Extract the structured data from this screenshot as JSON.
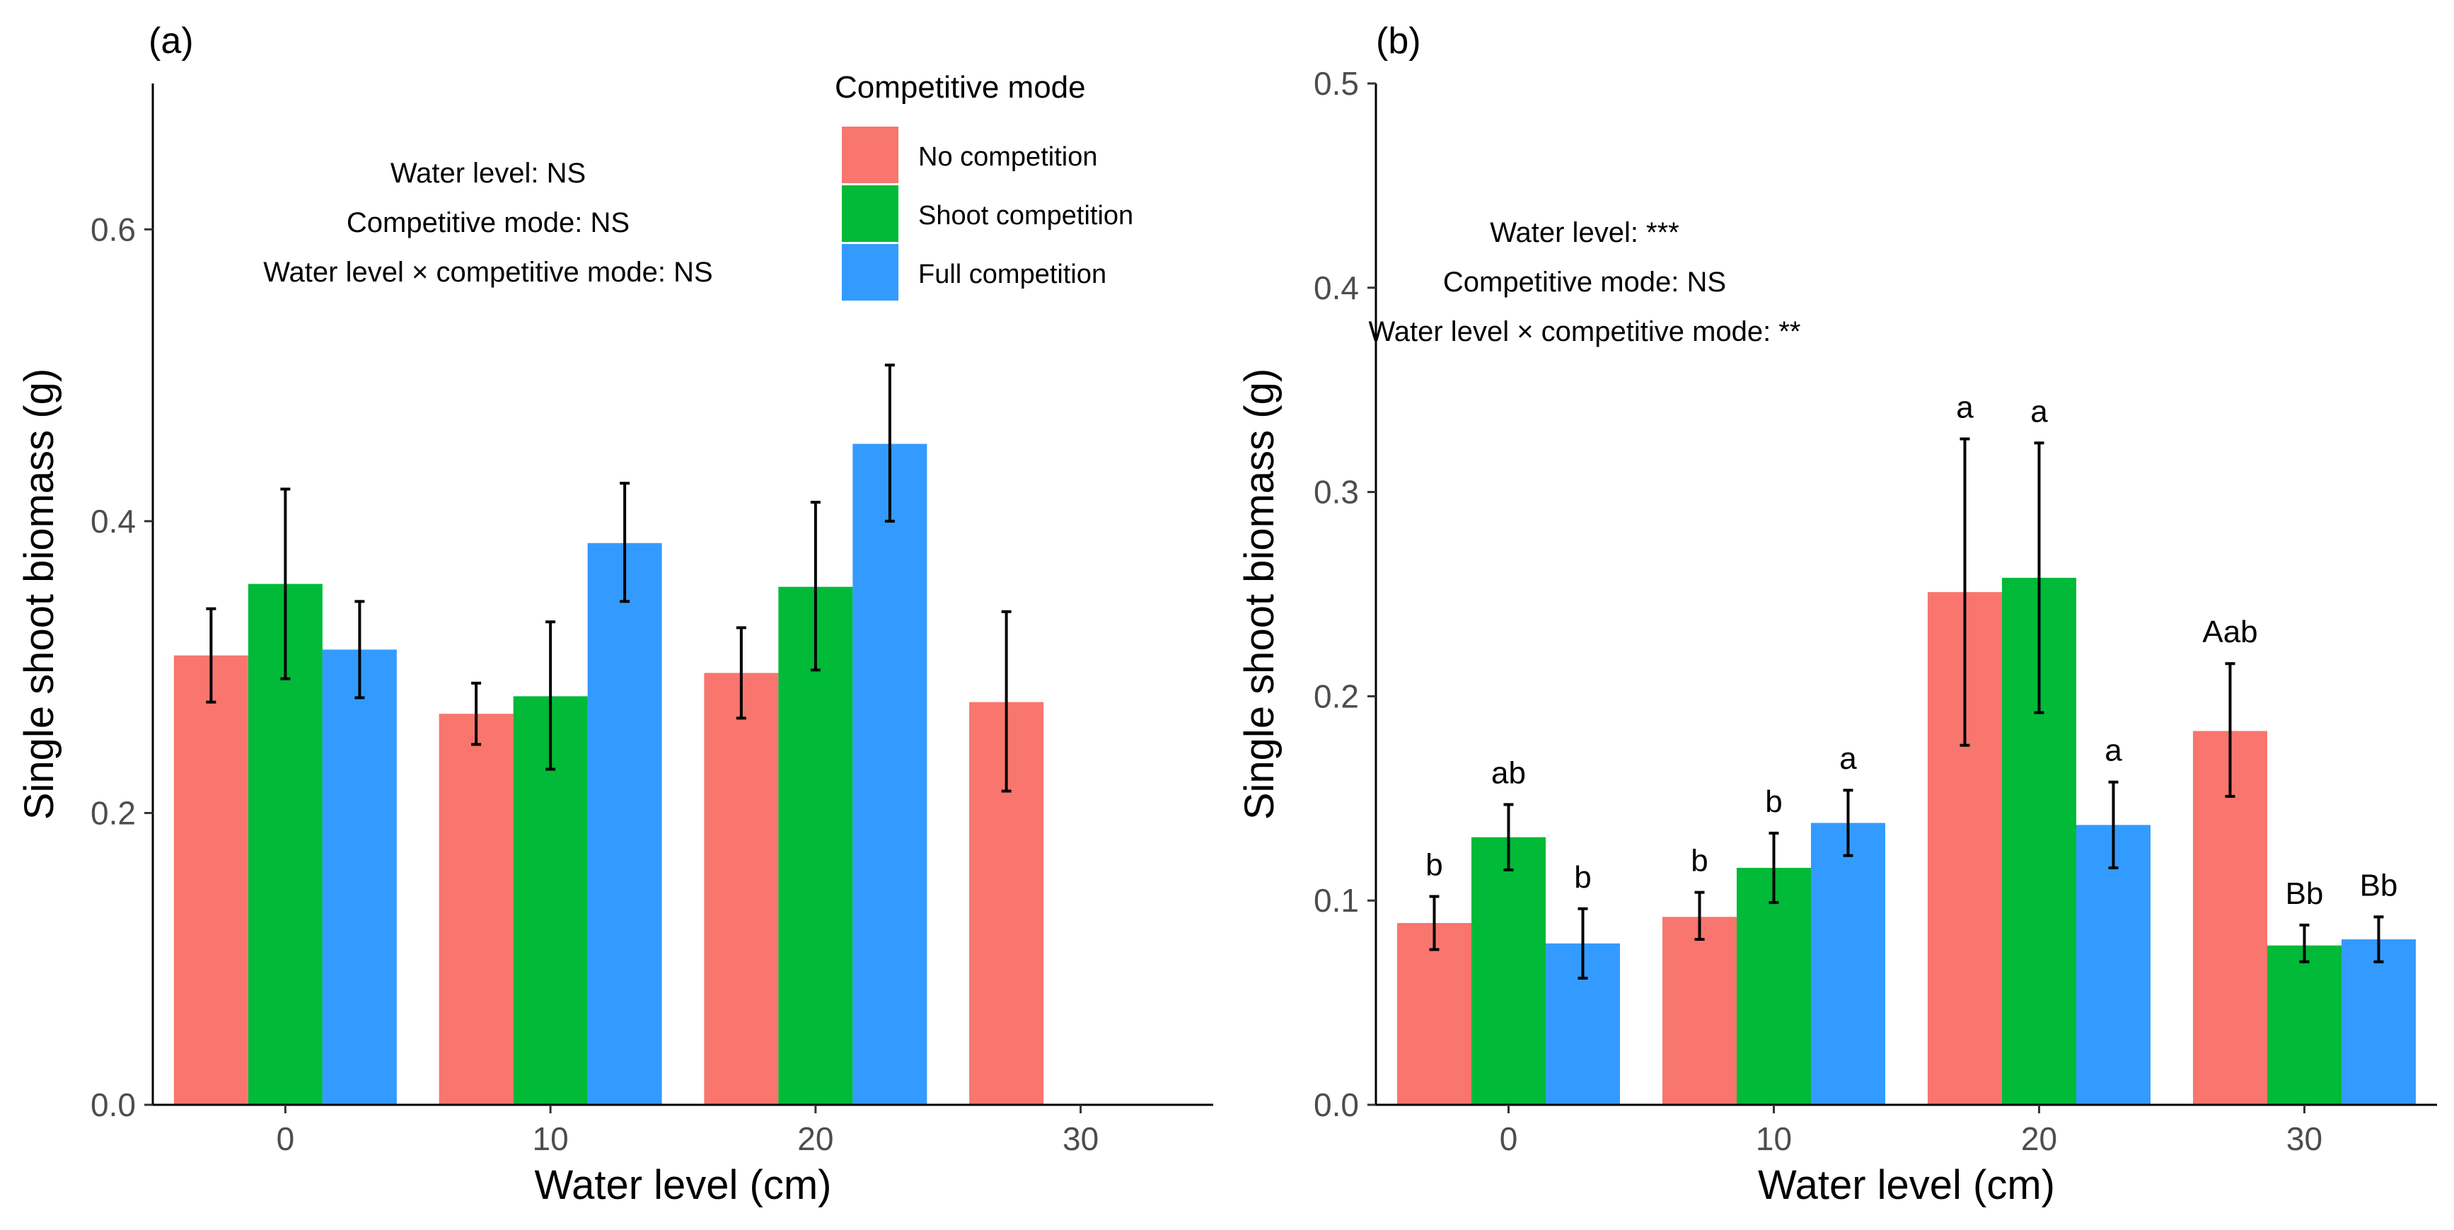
{
  "legend": {
    "title": "Competitive mode",
    "entries": [
      "No competition",
      "Shoot competition",
      "Full competition"
    ]
  },
  "colors": {
    "No competition": "#F8766D",
    "Shoot competition": "#00BA38",
    "Full competition": "#339BFF",
    "axis": "#000000",
    "tick_label": "#4D4D4D"
  },
  "chart_data": [
    {
      "type": "bar",
      "panel_label": "(a)",
      "xlabel": "Water level (cm)",
      "ylabel": "Single shoot biomass (g)",
      "categories": [
        "0",
        "10",
        "20",
        "30"
      ],
      "ylim": [
        0,
        0.7
      ],
      "yticks": [
        "0.0",
        "0.2",
        "0.4",
        "0.6"
      ],
      "grid": false,
      "series": [
        {
          "name": "No competition",
          "values": [
            0.308,
            0.268,
            0.296,
            0.276
          ],
          "err_low": [
            0.276,
            0.247,
            0.265,
            0.215
          ],
          "err_high": [
            0.34,
            0.289,
            0.327,
            0.338
          ],
          "labels": [
            "",
            "",
            "",
            ""
          ]
        },
        {
          "name": "Shoot competition",
          "values": [
            0.357,
            0.28,
            0.355,
            null
          ],
          "err_low": [
            0.292,
            0.23,
            0.298,
            null
          ],
          "err_high": [
            0.422,
            0.331,
            0.413,
            null
          ],
          "labels": [
            "",
            "",
            "",
            ""
          ]
        },
        {
          "name": "Full competition",
          "values": [
            0.312,
            0.385,
            0.453,
            null
          ],
          "err_low": [
            0.279,
            0.345,
            0.4,
            null
          ],
          "err_high": [
            0.345,
            0.426,
            0.507,
            null
          ],
          "labels": [
            "",
            "",
            "",
            ""
          ]
        }
      ],
      "annotations": [
        "Water level: NS",
        "Competitive mode: NS",
        "Water level × competitive mode: NS"
      ]
    },
    {
      "type": "bar",
      "panel_label": "(b)",
      "xlabel": "Water level (cm)",
      "ylabel": "Single shoot biomass (g)",
      "categories": [
        "0",
        "10",
        "20",
        "30"
      ],
      "ylim": [
        0,
        0.5
      ],
      "yticks": [
        "0.0",
        "0.1",
        "0.2",
        "0.3",
        "0.4",
        "0.5"
      ],
      "grid": false,
      "series": [
        {
          "name": "No competition",
          "values": [
            0.089,
            0.092,
            0.251,
            0.183
          ],
          "err_low": [
            0.076,
            0.081,
            0.176,
            0.151
          ],
          "err_high": [
            0.102,
            0.104,
            0.326,
            0.216
          ],
          "labels": [
            "b",
            "b",
            "a",
            "Aab"
          ]
        },
        {
          "name": "Shoot competition",
          "values": [
            0.131,
            0.116,
            0.258,
            0.078
          ],
          "err_low": [
            0.115,
            0.099,
            0.192,
            0.07
          ],
          "err_high": [
            0.147,
            0.133,
            0.324,
            0.088
          ],
          "labels": [
            "ab",
            "b",
            "a",
            "Bb"
          ]
        },
        {
          "name": "Full competition",
          "values": [
            0.079,
            0.138,
            0.137,
            0.081
          ],
          "err_low": [
            0.062,
            0.122,
            0.116,
            0.07
          ],
          "err_high": [
            0.096,
            0.154,
            0.158,
            0.092
          ],
          "labels": [
            "b",
            "a",
            "a",
            "Bb"
          ]
        }
      ],
      "annotations": [
        "Water level: ***",
        "Competitive mode: NS",
        "Water level × competitive mode: **"
      ]
    }
  ]
}
